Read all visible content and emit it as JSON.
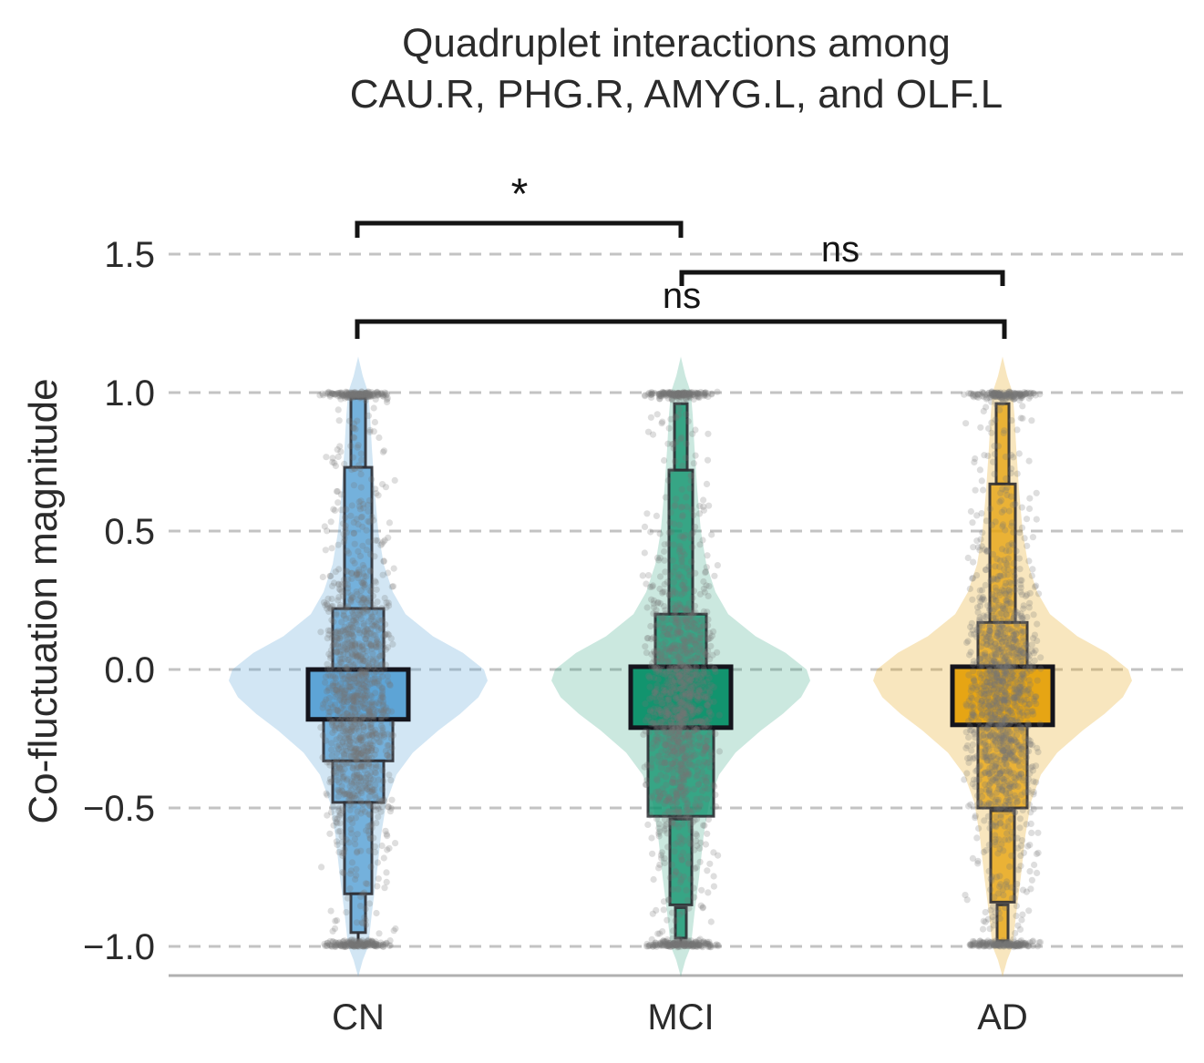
{
  "figure": {
    "title_line1": "Quadruplet interactions among",
    "title_line2": "CAU.R, PHG.R, AMYG.L, and OLF.L",
    "ylabel": "Co-fluctuation magnitude"
  },
  "chart_data": {
    "type": "violin-boxen-strip",
    "title": "Quadruplet interactions among CAU.R, PHG.R, AMYG.L, and OLF.L",
    "xlabel": "",
    "ylabel": "Co-fluctuation magnitude",
    "categories": [
      "CN",
      "MCI",
      "AD"
    ],
    "ytick_labels": [
      "1.5",
      "1.0",
      "0.5",
      "0.0",
      "−0.5",
      "−1.0"
    ],
    "ytick_values": [
      1.5,
      1.0,
      0.5,
      0.0,
      -0.5,
      -1.0
    ],
    "ylim": [
      -1.15,
      1.68
    ],
    "grid": {
      "axis": "y",
      "style": "dashed",
      "color": "#c3c3c3"
    },
    "background_color": "#ffffff",
    "text_color": "#2b2b2b",
    "annotation_color": "#141414",
    "axis_line_color": "#b0b0b0",
    "box_edge_color": "#2e2e33",
    "median_box_edge_color": "#14141c",
    "point_style": {
      "color": "#767676",
      "opacity": 0.24,
      "radius": 3.6
    },
    "violin_profile": [
      [
        1.13,
        0
      ],
      [
        1.06,
        5
      ],
      [
        1.0,
        11
      ],
      [
        0.92,
        13
      ],
      [
        0.8,
        15
      ],
      [
        0.65,
        18
      ],
      [
        0.5,
        22
      ],
      [
        0.38,
        28
      ],
      [
        0.28,
        38
      ],
      [
        0.2,
        52
      ],
      [
        0.12,
        82
      ],
      [
        0.06,
        115
      ],
      [
        0.0,
        138
      ],
      [
        -0.04,
        142
      ],
      [
        -0.1,
        132
      ],
      [
        -0.16,
        112
      ],
      [
        -0.22,
        88
      ],
      [
        -0.3,
        60
      ],
      [
        -0.38,
        42
      ],
      [
        -0.48,
        31
      ],
      [
        -0.6,
        25
      ],
      [
        -0.75,
        20
      ],
      [
        -0.88,
        15
      ],
      [
        -1.0,
        11
      ],
      [
        -1.05,
        5
      ],
      [
        -1.11,
        0
      ]
    ],
    "groups": [
      {
        "label": "CN",
        "color": "#5DA4D6",
        "violin_tint_opacity": 0.28,
        "point_center": -0.1,
        "data_range": [
          -1.0,
          1.0
        ],
        "median_box": {
          "top": 0.0,
          "bottom": -0.18,
          "halfwidth": 55
        },
        "boxen_levels": [
          {
            "top": 0.98,
            "bottom": 0.73,
            "halfwidth": 8
          },
          {
            "top": 0.73,
            "bottom": 0.22,
            "halfwidth": 15
          },
          {
            "top": 0.22,
            "bottom": 0.0,
            "halfwidth": 28
          },
          {
            "top": -0.18,
            "bottom": -0.33,
            "halfwidth": 38
          },
          {
            "top": -0.33,
            "bottom": -0.48,
            "halfwidth": 28
          },
          {
            "top": -0.48,
            "bottom": -0.81,
            "halfwidth": 15
          },
          {
            "top": -0.81,
            "bottom": -0.95,
            "halfwidth": 8
          }
        ],
        "whisker": {
          "top": -0.95,
          "bottom": -0.99
        }
      },
      {
        "label": "MCI",
        "color": "#12946E",
        "violin_tint_opacity": 0.22,
        "point_center": -0.12,
        "data_range": [
          -1.0,
          1.0
        ],
        "median_box": {
          "top": 0.01,
          "bottom": -0.21,
          "halfwidth": 55
        },
        "boxen_levels": [
          {
            "top": 0.96,
            "bottom": 0.72,
            "halfwidth": 7
          },
          {
            "top": 0.72,
            "bottom": 0.2,
            "halfwidth": 13
          },
          {
            "top": 0.2,
            "bottom": 0.01,
            "halfwidth": 28
          },
          {
            "top": -0.21,
            "bottom": -0.53,
            "halfwidth": 36
          },
          {
            "top": -0.54,
            "bottom": -0.85,
            "halfwidth": 12
          },
          {
            "top": -0.86,
            "bottom": -0.97,
            "halfwidth": 6
          }
        ],
        "whisker": {
          "top": -0.97,
          "bottom": -0.99
        }
      },
      {
        "label": "AD",
        "color": "#E6A514",
        "violin_tint_opacity": 0.28,
        "point_center": -0.1,
        "data_range": [
          -1.0,
          1.0
        ],
        "median_box": {
          "top": 0.01,
          "bottom": -0.2,
          "halfwidth": 55
        },
        "boxen_levels": [
          {
            "top": 0.96,
            "bottom": 0.67,
            "halfwidth": 7
          },
          {
            "top": 0.67,
            "bottom": 0.17,
            "halfwidth": 14
          },
          {
            "top": 0.17,
            "bottom": 0.01,
            "halfwidth": 27
          },
          {
            "top": -0.2,
            "bottom": -0.5,
            "halfwidth": 27
          },
          {
            "top": -0.51,
            "bottom": -0.84,
            "halfwidth": 13
          },
          {
            "top": -0.85,
            "bottom": -0.98,
            "halfwidth": 6
          }
        ],
        "whisker": {
          "top": -0.98,
          "bottom": -0.99
        }
      }
    ],
    "significance_brackets": [
      {
        "from": "CN",
        "to": "MCI",
        "label": "*"
      },
      {
        "from": "MCI",
        "to": "AD",
        "label": "ns"
      },
      {
        "from": "CN",
        "to": "AD",
        "label": "ns"
      }
    ]
  }
}
